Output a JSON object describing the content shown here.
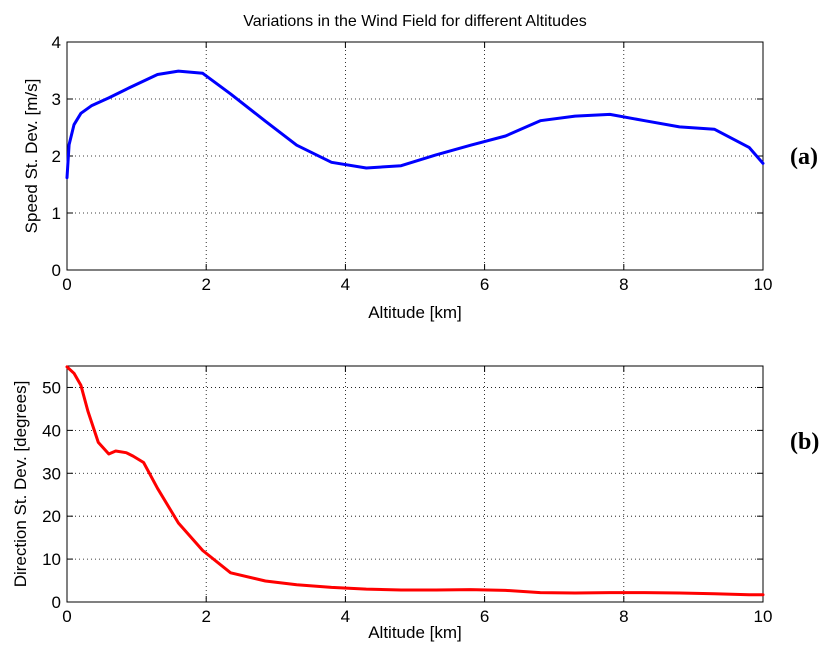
{
  "chart_data": [
    {
      "type": "line",
      "title": "Variations in the Wind Field for different Altitudes",
      "xlabel": "Altitude [km]",
      "ylabel": "Speed St. Dev. [m/s]",
      "panel_label": "(a)",
      "xlim": [
        0,
        10
      ],
      "ylim": [
        0,
        4
      ],
      "xticks": [
        0,
        2,
        4,
        6,
        8,
        10
      ],
      "yticks": [
        0,
        1,
        2,
        3,
        4
      ],
      "grid": true,
      "series": [
        {
          "color": "#0000ff",
          "x": [
            0.0,
            0.03,
            0.1,
            0.2,
            0.35,
            0.6,
            0.9,
            1.3,
            1.6,
            1.95,
            2.35,
            2.85,
            3.3,
            3.8,
            4.3,
            4.8,
            5.3,
            5.8,
            6.3,
            6.8,
            7.3,
            7.8,
            8.3,
            8.8,
            9.3,
            9.8,
            10.0
          ],
          "y": [
            1.62,
            2.2,
            2.55,
            2.75,
            2.88,
            3.02,
            3.2,
            3.43,
            3.49,
            3.45,
            3.09,
            2.61,
            2.19,
            1.89,
            1.79,
            1.83,
            2.02,
            2.19,
            2.35,
            2.62,
            2.7,
            2.73,
            2.62,
            2.51,
            2.47,
            2.15,
            1.87
          ]
        }
      ]
    },
    {
      "type": "line",
      "title": "",
      "xlabel": "Altitude [km]",
      "ylabel": "Direction St. Dev. [degrees]",
      "panel_label": "(b)",
      "xlim": [
        0,
        10
      ],
      "ylim": [
        0,
        55
      ],
      "xticks": [
        0,
        2,
        4,
        6,
        8,
        10
      ],
      "yticks": [
        0,
        10,
        20,
        30,
        40,
        50
      ],
      "grid": true,
      "series": [
        {
          "color": "#ff0000",
          "x": [
            0.0,
            0.1,
            0.2,
            0.3,
            0.45,
            0.6,
            0.7,
            0.85,
            0.95,
            1.1,
            1.3,
            1.6,
            1.95,
            2.35,
            2.85,
            3.3,
            3.8,
            4.3,
            4.8,
            5.3,
            5.8,
            6.3,
            6.8,
            7.3,
            7.8,
            8.3,
            8.8,
            9.3,
            9.8,
            10.0
          ],
          "y": [
            54.8,
            53.3,
            50.5,
            44.5,
            37.2,
            34.5,
            35.2,
            34.8,
            34.0,
            32.5,
            26.5,
            18.4,
            12.0,
            6.8,
            4.9,
            4.0,
            3.4,
            3.0,
            2.8,
            2.8,
            2.9,
            2.7,
            2.2,
            2.1,
            2.2,
            2.2,
            2.1,
            1.9,
            1.7,
            1.7
          ]
        }
      ]
    }
  ]
}
